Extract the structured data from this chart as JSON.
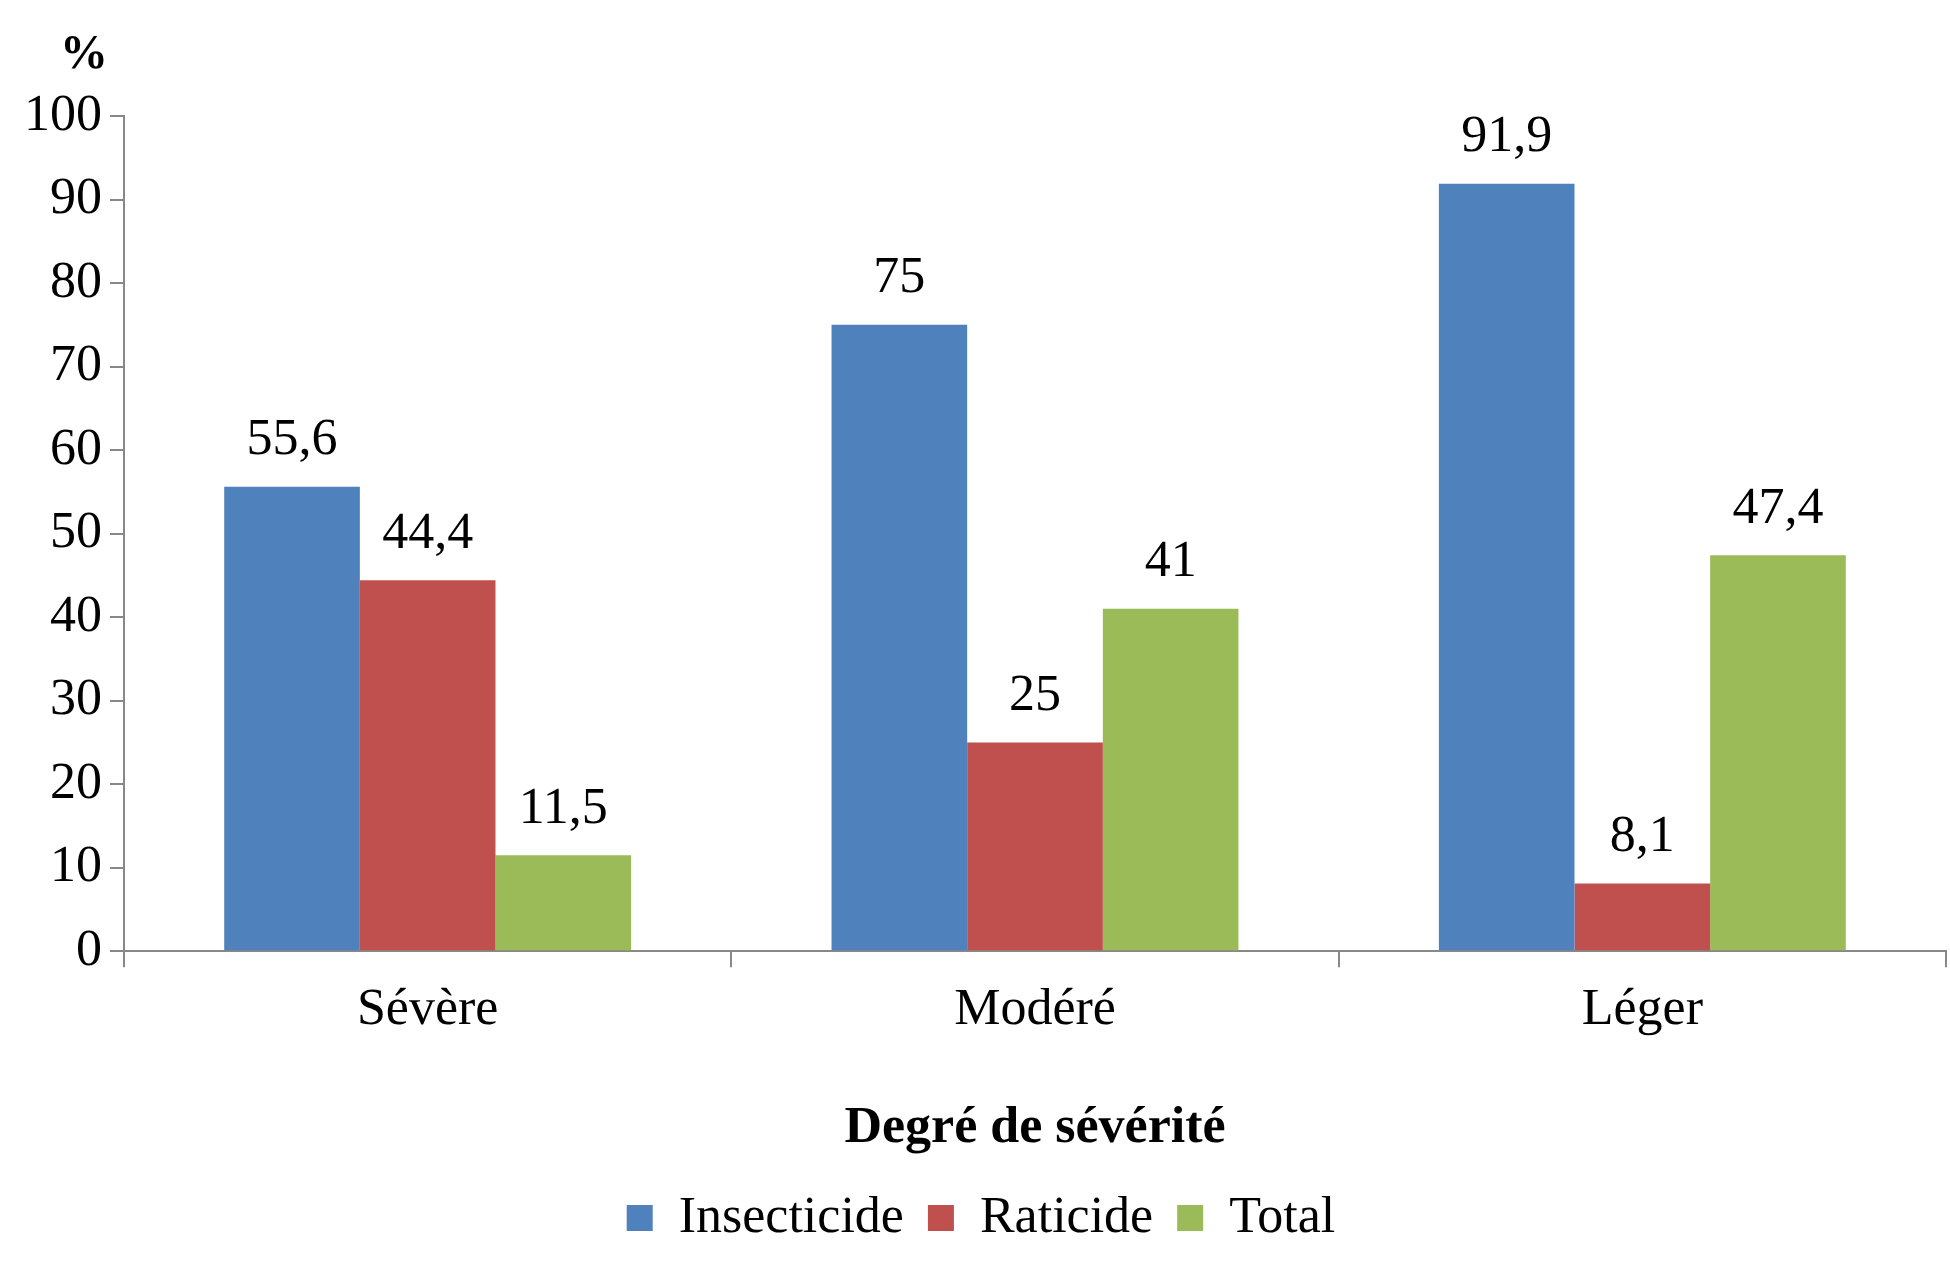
{
  "chart_data": {
    "type": "bar",
    "ylabel": "%",
    "xlabel": "Degré de sévérité",
    "categories": [
      "Sévère",
      "Modéré",
      "Léger"
    ],
    "series": [
      {
        "name": "Insecticide",
        "color": "#4f81bd",
        "values": [
          55.6,
          75,
          91.9
        ],
        "value_labels": [
          "55,6",
          "75",
          "91,9"
        ]
      },
      {
        "name": "Raticide",
        "color": "#c0504d",
        "values": [
          44.4,
          25,
          8.1
        ],
        "value_labels": [
          "44,4",
          "25",
          "8,1"
        ]
      },
      {
        "name": "Total",
        "color": "#9bbb59",
        "values": [
          11.5,
          41,
          47.4
        ],
        "value_labels": [
          "11,5",
          "41",
          "47,4"
        ]
      }
    ],
    "ylim": [
      0,
      100
    ],
    "yticks": [
      0,
      10,
      20,
      30,
      40,
      50,
      60,
      70,
      80,
      90,
      100
    ],
    "grid": false,
    "legend": "bottom"
  }
}
